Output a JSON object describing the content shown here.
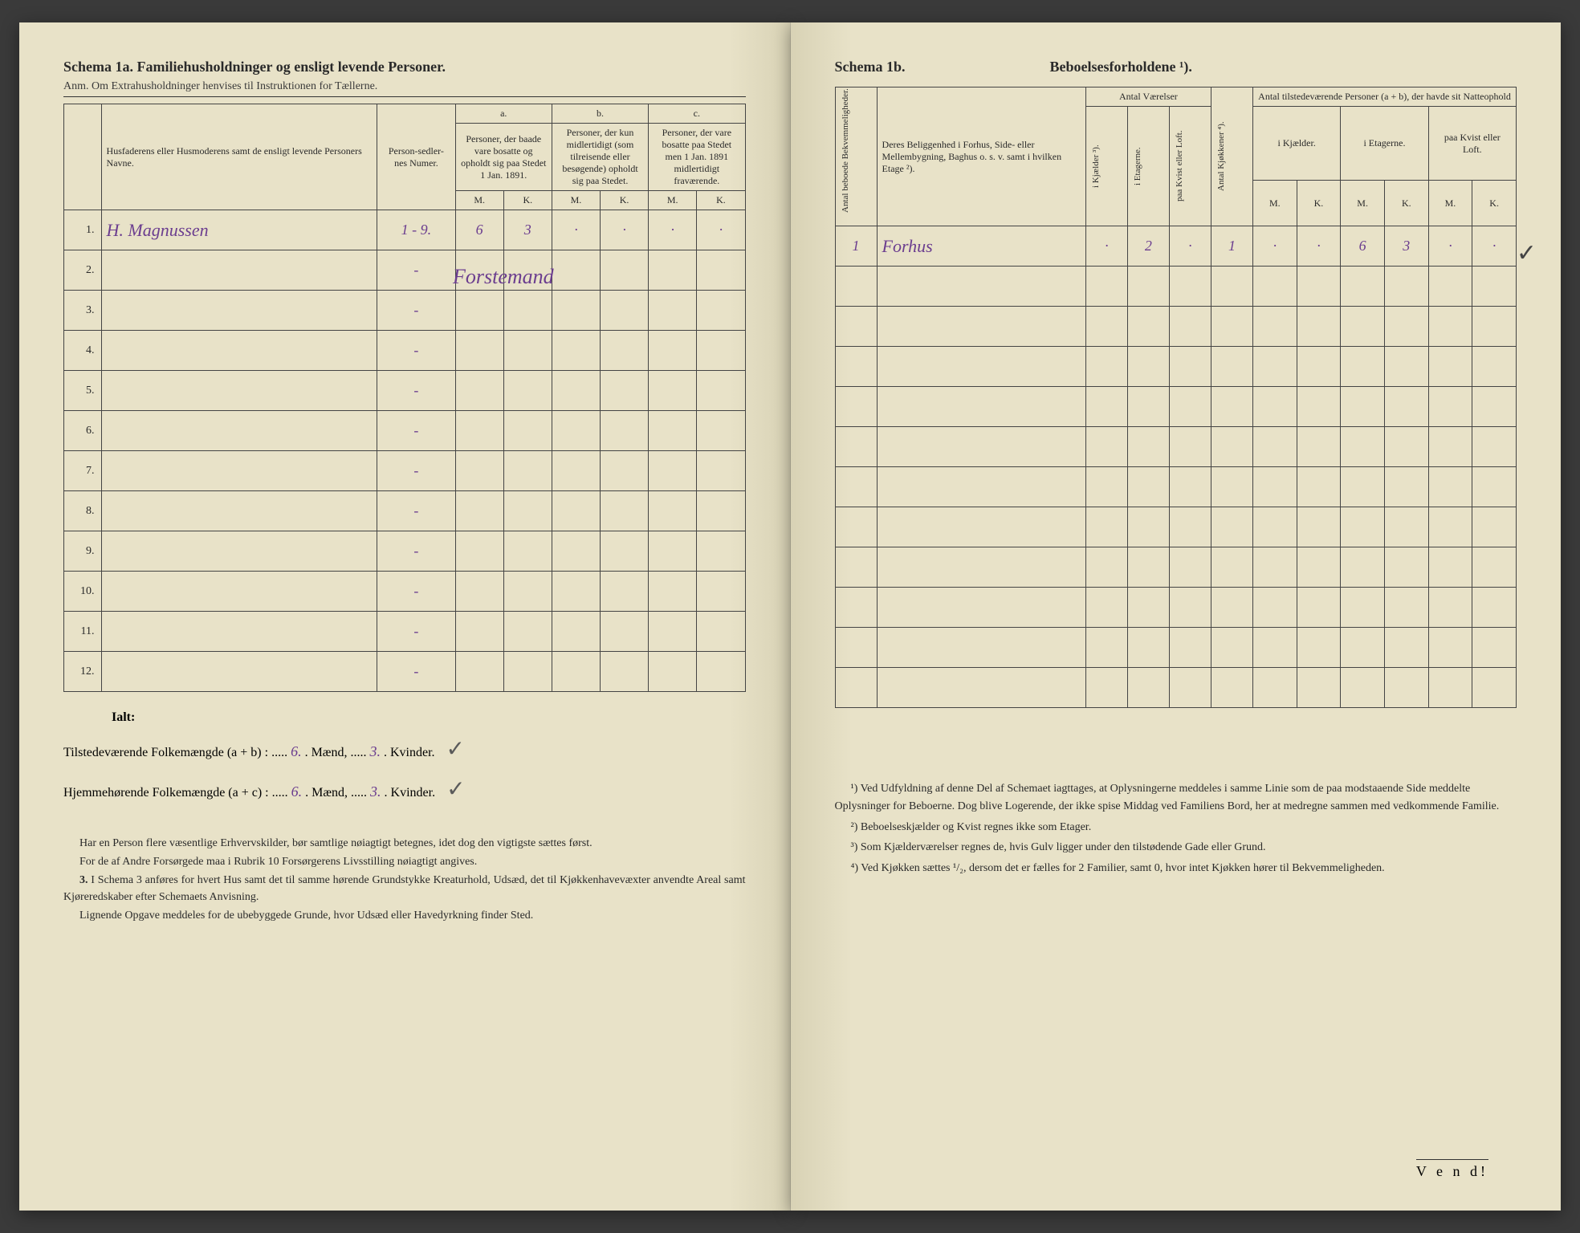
{
  "left": {
    "title": "Schema 1a.  Familiehusholdninger og ensligt levende Personer.",
    "subtitle": "Anm.  Om Extrahusholdninger henvises til Instruktionen for Tællerne.",
    "headers": {
      "name": "Husfaderens eller Husmoderens samt de ensligt levende Personers Navne.",
      "numer": "Person-sedler-nes Numer.",
      "a_label": "a.",
      "a": "Personer, der baade vare bosatte og opholdt sig paa Stedet 1 Jan. 1891.",
      "b_label": "b.",
      "b": "Personer, der kun midlertidigt (som tilreisende eller besøgende) opholdt sig paa Stedet.",
      "c_label": "c.",
      "c": "Personer, der vare bosatte paa Stedet men 1 Jan. 1891 midlertidigt fraværende.",
      "M": "M.",
      "K": "K."
    },
    "rows": [
      {
        "n": "1.",
        "name": "H. Magnussen",
        "numer": "1 - 9.",
        "aM": "6",
        "aK": "3",
        "bM": "·",
        "bK": "·",
        "cM": "·",
        "cK": "·"
      },
      {
        "n": "2.",
        "numer": "-"
      },
      {
        "n": "3.",
        "numer": "-"
      },
      {
        "n": "4.",
        "numer": "-"
      },
      {
        "n": "5.",
        "numer": "-"
      },
      {
        "n": "6.",
        "numer": "-"
      },
      {
        "n": "7.",
        "numer": "-"
      },
      {
        "n": "8.",
        "numer": "-"
      },
      {
        "n": "9.",
        "numer": "-"
      },
      {
        "n": "10.",
        "numer": "-"
      },
      {
        "n": "11.",
        "numer": "-"
      },
      {
        "n": "12.",
        "numer": "-"
      }
    ],
    "overwrite": "Forstemand",
    "totals": {
      "ialt": "Ialt:",
      "line1_a": "Tilstedeværende Folkemængde (a + b) : .....",
      "line1_m": "6.",
      "line1_mid": ". Mænd, .....",
      "line1_k": "3.",
      "line1_end": ". Kvinder.",
      "line2_a": "Hjemmehørende Folkemængde (a + c) : .....",
      "line2_m": "6.",
      "line2_k": "3."
    },
    "footer": {
      "p1": "Har en Person flere væsentlige Erhvervskilder, bør samtlige nøiagtigt betegnes, idet dog den vigtigste sættes først.",
      "p2": "For de af Andre Forsørgede maa i Rubrik 10 Forsørgerens Livsstilling nøiagtigt angives.",
      "p3_label": "3.",
      "p3": "I Schema 3 anføres for hvert Hus samt det til samme hørende Grundstykke Kreaturhold, Udsæd, det til Kjøkkenhavevæxter anvendte Areal samt Kjøreredskaber efter Schemaets Anvisning.",
      "p4": "Lignende Opgave meddeles for de ubebyggede Grunde, hvor Udsæd eller Havedyrkning finder Sted."
    }
  },
  "right": {
    "title1": "Schema 1b.",
    "title2": "Beboelsesforholdene ¹).",
    "headers": {
      "bekv": "Antal beboede Bekvemmeligheder.",
      "belig": "Deres Beliggenhed i Forhus, Side- eller Mellembygning, Baghus o. s. v. samt i hvilken Etage ²).",
      "vaer": "Antal Værelser",
      "kjokk": "Antal Kjøkkener ⁴).",
      "natte": "Antal tilstedeværende Personer (a + b), der havde sit Natteophold",
      "kjeld": "i Kjælder ³).",
      "etag": "i Etagerne.",
      "kvist": "paa Kvist eller Loft.",
      "ikjeld": "i Kjælder.",
      "ietag": "i Etagerne.",
      "pkvist": "paa Kvist eller Loft.",
      "M": "M.",
      "K": "K."
    },
    "row": {
      "bekv": "1",
      "belig": "Forhus",
      "kjeld": "·",
      "etag": "2",
      "kvist": "·",
      "kjokk": "1",
      "ikM": "·",
      "ikK": "·",
      "ieM": "6",
      "ieK": "3",
      "pkM": "·",
      "pkK": "·"
    },
    "footnotes": {
      "f1": "¹) Ved Udfyldning af denne Del af Schemaet iagttages, at Oplysningerne meddeles i samme Linie som de paa modstaaende Side meddelte Oplysninger for Beboerne. Dog blive Logerende, der ikke spise Middag ved Familiens Bord, her at medregne sammen med vedkommende Familie.",
      "f2": "²) Beboelseskjælder og Kvist regnes ikke som Etager.",
      "f3": "³) Som Kjælderværelser regnes de, hvis Gulv ligger under den tilstødende Gade eller Grund.",
      "f4": "⁴) Ved Kjøkken sættes ¹/₂, dersom det er fælles for 2 Familier, samt 0, hvor intet Kjøkken hører til Bekvemmeligheden."
    },
    "vend": "V e n d!"
  }
}
